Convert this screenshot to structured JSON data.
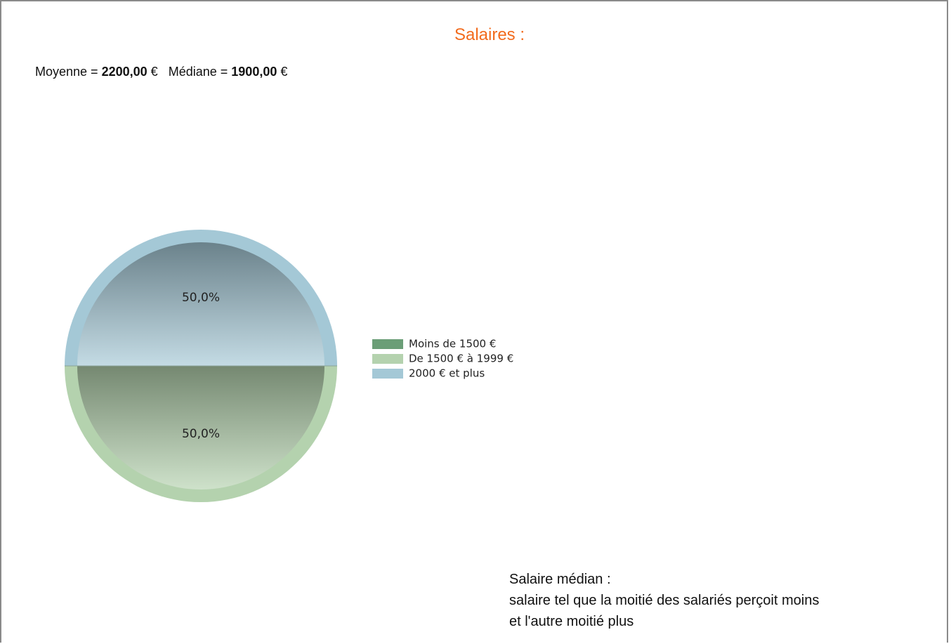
{
  "header": {
    "title": "Salaires :"
  },
  "stats": {
    "mean_label": "Moyenne =",
    "mean": "2200,00",
    "mean_unit": "€",
    "median_label": "Médiane =",
    "median": "1900,00",
    "median_unit": "€"
  },
  "chart_data": {
    "type": "pie",
    "categories": [
      "Moins de 1500 €",
      "De 1500 € à 1999 €",
      "2000 € et plus"
    ],
    "values": [
      0,
      50,
      50
    ],
    "value_labels": [
      null,
      "50,0%",
      "50,0%"
    ],
    "colors": [
      "#6b9e77",
      "#b4d2ae",
      "#a4c8d6"
    ],
    "legend": "right"
  },
  "note": {
    "lines": [
      "Salaire médian :",
      "salaire tel que la moitié des salariés perçoit moins",
      "et l'autre moitié plus"
    ]
  }
}
